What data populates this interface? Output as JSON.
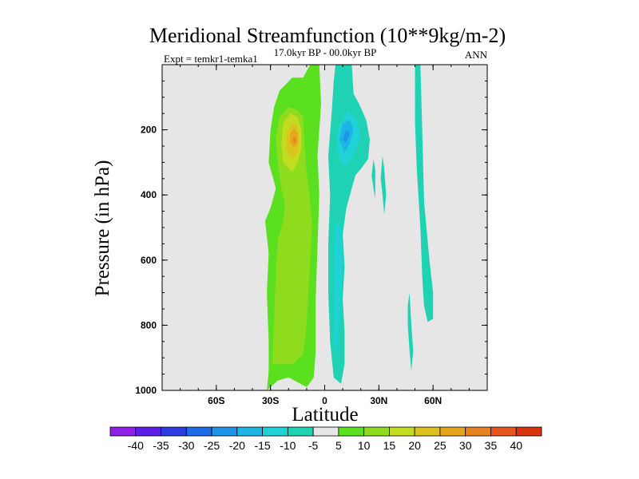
{
  "chart_data": {
    "type": "heatmap",
    "title": "Meridional Streamfunction (10**9kg/m-2)",
    "left_string": "Expt = temkr1-temka1",
    "center_string": "17.0kyr BP - 00.0kyr BP",
    "right_string": "ANN",
    "xlabel": "Latitude",
    "ylabel": "Pressure (in hPa)",
    "xlim": [
      -90,
      90
    ],
    "ylim": [
      1000,
      0
    ],
    "xticks": [
      {
        "value": -60,
        "label": "60S"
      },
      {
        "value": -30,
        "label": "30S"
      },
      {
        "value": 0,
        "label": "0"
      },
      {
        "value": 30,
        "label": "30N"
      },
      {
        "value": 60,
        "label": "60N"
      }
    ],
    "yticks": [
      {
        "value": 200,
        "label": "200"
      },
      {
        "value": 400,
        "label": "400"
      },
      {
        "value": 600,
        "label": "600"
      },
      {
        "value": 800,
        "label": "800"
      },
      {
        "value": 1000,
        "label": "1000"
      }
    ],
    "background_color": "#e6e6e6",
    "colorbar": {
      "labels": [
        "-40",
        "-35",
        "-30",
        "-25",
        "-20",
        "-15",
        "-10",
        "-5",
        "5",
        "10",
        "15",
        "20",
        "25",
        "30",
        "35",
        "40"
      ],
      "colors": [
        "#8f1ee6",
        "#5a1ee6",
        "#2e3be0",
        "#1f6ce6",
        "#1f94e6",
        "#1fb4e6",
        "#1fd2d6",
        "#1fd2b4",
        "#e6e6e6",
        "#5ae01f",
        "#8fdc1f",
        "#c3dc1f",
        "#dcc31f",
        "#e6a51f",
        "#e6821f",
        "#e6551f",
        "#d9330f"
      ]
    },
    "regions": [
      {
        "level": 5,
        "pts": [
          [
            -32,
            1000
          ],
          [
            -31,
            940
          ],
          [
            -31,
            850
          ],
          [
            -32,
            700
          ],
          [
            -31,
            580
          ],
          [
            -33,
            480
          ],
          [
            -30,
            440
          ],
          [
            -27,
            380
          ],
          [
            -31,
            300
          ],
          [
            -30,
            200
          ],
          [
            -28,
            130
          ],
          [
            -25,
            80
          ],
          [
            -18,
            40
          ],
          [
            -12,
            40
          ],
          [
            -8,
            0
          ],
          [
            -3,
            0
          ],
          [
            -2,
            120
          ],
          [
            -4,
            280
          ],
          [
            -3,
            400
          ],
          [
            -4,
            560
          ],
          [
            -5,
            720
          ],
          [
            -5,
            880
          ],
          [
            -6,
            960
          ],
          [
            -10,
            990
          ],
          [
            -20,
            960
          ],
          [
            -26,
            970
          ]
        ]
      },
      {
        "level": 10,
        "pts": [
          [
            -29,
            920
          ],
          [
            -28,
            780
          ],
          [
            -27,
            640
          ],
          [
            -26,
            540
          ],
          [
            -23,
            480
          ],
          [
            -22,
            430
          ],
          [
            -24,
            380
          ],
          [
            -26,
            300
          ],
          [
            -27,
            230
          ],
          [
            -25,
            160
          ],
          [
            -20,
            130
          ],
          [
            -15,
            140
          ],
          [
            -12,
            160
          ],
          [
            -11,
            260
          ],
          [
            -10,
            330
          ],
          [
            -8,
            420
          ],
          [
            -7,
            500
          ],
          [
            -8,
            600
          ],
          [
            -9,
            700
          ],
          [
            -10,
            800
          ],
          [
            -12,
            890
          ],
          [
            -18,
            920
          ]
        ]
      },
      {
        "level": 15,
        "pts": [
          [
            -23,
            300
          ],
          [
            -24,
            250
          ],
          [
            -23,
            180
          ],
          [
            -19,
            150
          ],
          [
            -15,
            160
          ],
          [
            -13,
            200
          ],
          [
            -13,
            260
          ],
          [
            -15,
            300
          ],
          [
            -18,
            330
          ]
        ]
      },
      {
        "level": 20,
        "pts": [
          [
            -21,
            260
          ],
          [
            -21,
            210
          ],
          [
            -18,
            180
          ],
          [
            -15,
            190
          ],
          [
            -14,
            230
          ],
          [
            -15,
            270
          ],
          [
            -18,
            290
          ]
        ]
      },
      {
        "level": 25,
        "pts": [
          [
            -19,
            240
          ],
          [
            -19,
            210
          ],
          [
            -17,
            195
          ],
          [
            -15,
            210
          ],
          [
            -15,
            240
          ],
          [
            -17,
            255
          ]
        ]
      },
      {
        "level": 30,
        "pts": [
          [
            -17.5,
            230
          ],
          [
            -17.5,
            225
          ],
          [
            -16,
            225
          ],
          [
            -16,
            245
          ]
        ]
      },
      {
        "level": -5,
        "pts": [
          [
            6,
            0
          ],
          [
            15,
            0
          ],
          [
            16,
            90
          ],
          [
            19,
            120
          ],
          [
            23,
            170
          ],
          [
            25,
            230
          ],
          [
            24,
            290
          ],
          [
            20,
            320
          ],
          [
            17,
            340
          ],
          [
            15,
            380
          ],
          [
            12,
            440
          ],
          [
            10,
            520
          ],
          [
            11,
            620
          ],
          [
            10,
            720
          ],
          [
            11,
            820
          ],
          [
            11,
            920
          ],
          [
            9,
            980
          ],
          [
            5,
            960
          ],
          [
            3,
            850
          ],
          [
            2,
            700
          ],
          [
            2,
            550
          ],
          [
            3,
            400
          ],
          [
            2,
            280
          ],
          [
            4,
            140
          ],
          [
            5,
            50
          ]
        ]
      },
      {
        "level": -5,
        "pts": [
          [
            27,
            290
          ],
          [
            28,
            320
          ],
          [
            28,
            350
          ],
          [
            28,
            410
          ],
          [
            27,
            380
          ],
          [
            26,
            340
          ]
        ]
      },
      {
        "level": -5,
        "pts": [
          [
            32,
            280
          ],
          [
            33,
            320
          ],
          [
            34,
            400
          ],
          [
            33,
            460
          ],
          [
            32,
            400
          ],
          [
            31,
            350
          ]
        ]
      },
      {
        "level": -5,
        "pts": [
          [
            50,
            0
          ],
          [
            53,
            0
          ],
          [
            54,
            200
          ],
          [
            55,
            420
          ],
          [
            58,
            600
          ],
          [
            60,
            700
          ],
          [
            60,
            780
          ],
          [
            57,
            790
          ],
          [
            55,
            740
          ],
          [
            54,
            650
          ],
          [
            53,
            500
          ],
          [
            51,
            320
          ],
          [
            50,
            180
          ]
        ]
      },
      {
        "level": -5,
        "pts": [
          [
            47,
            700
          ],
          [
            48,
            800
          ],
          [
            49,
            880
          ],
          [
            48,
            940
          ],
          [
            47,
            880
          ],
          [
            46,
            800
          ],
          [
            46,
            740
          ]
        ]
      },
      {
        "level": -10,
        "pts": [
          [
            8,
            190
          ],
          [
            13,
            140
          ],
          [
            18,
            170
          ],
          [
            20,
            220
          ],
          [
            17,
            270
          ],
          [
            12,
            310
          ],
          [
            9,
            300
          ],
          [
            7,
            260
          ],
          [
            7,
            220
          ]
        ]
      },
      {
        "level": -10,
        "pts": [
          [
            6,
            480
          ],
          [
            9,
            500
          ],
          [
            10,
            600
          ],
          [
            9,
            700
          ],
          [
            8,
            810
          ],
          [
            6,
            900
          ],
          [
            5,
            850
          ],
          [
            5,
            700
          ],
          [
            5,
            580
          ]
        ]
      },
      {
        "level": -15,
        "pts": [
          [
            8,
            230
          ],
          [
            10,
            180
          ],
          [
            14,
            170
          ],
          [
            16,
            200
          ],
          [
            14,
            240
          ],
          [
            11,
            270
          ]
        ]
      },
      {
        "level": -20,
        "pts": [
          [
            10,
            230
          ],
          [
            12,
            200
          ],
          [
            14,
            210
          ],
          [
            12,
            240
          ]
        ]
      }
    ]
  }
}
